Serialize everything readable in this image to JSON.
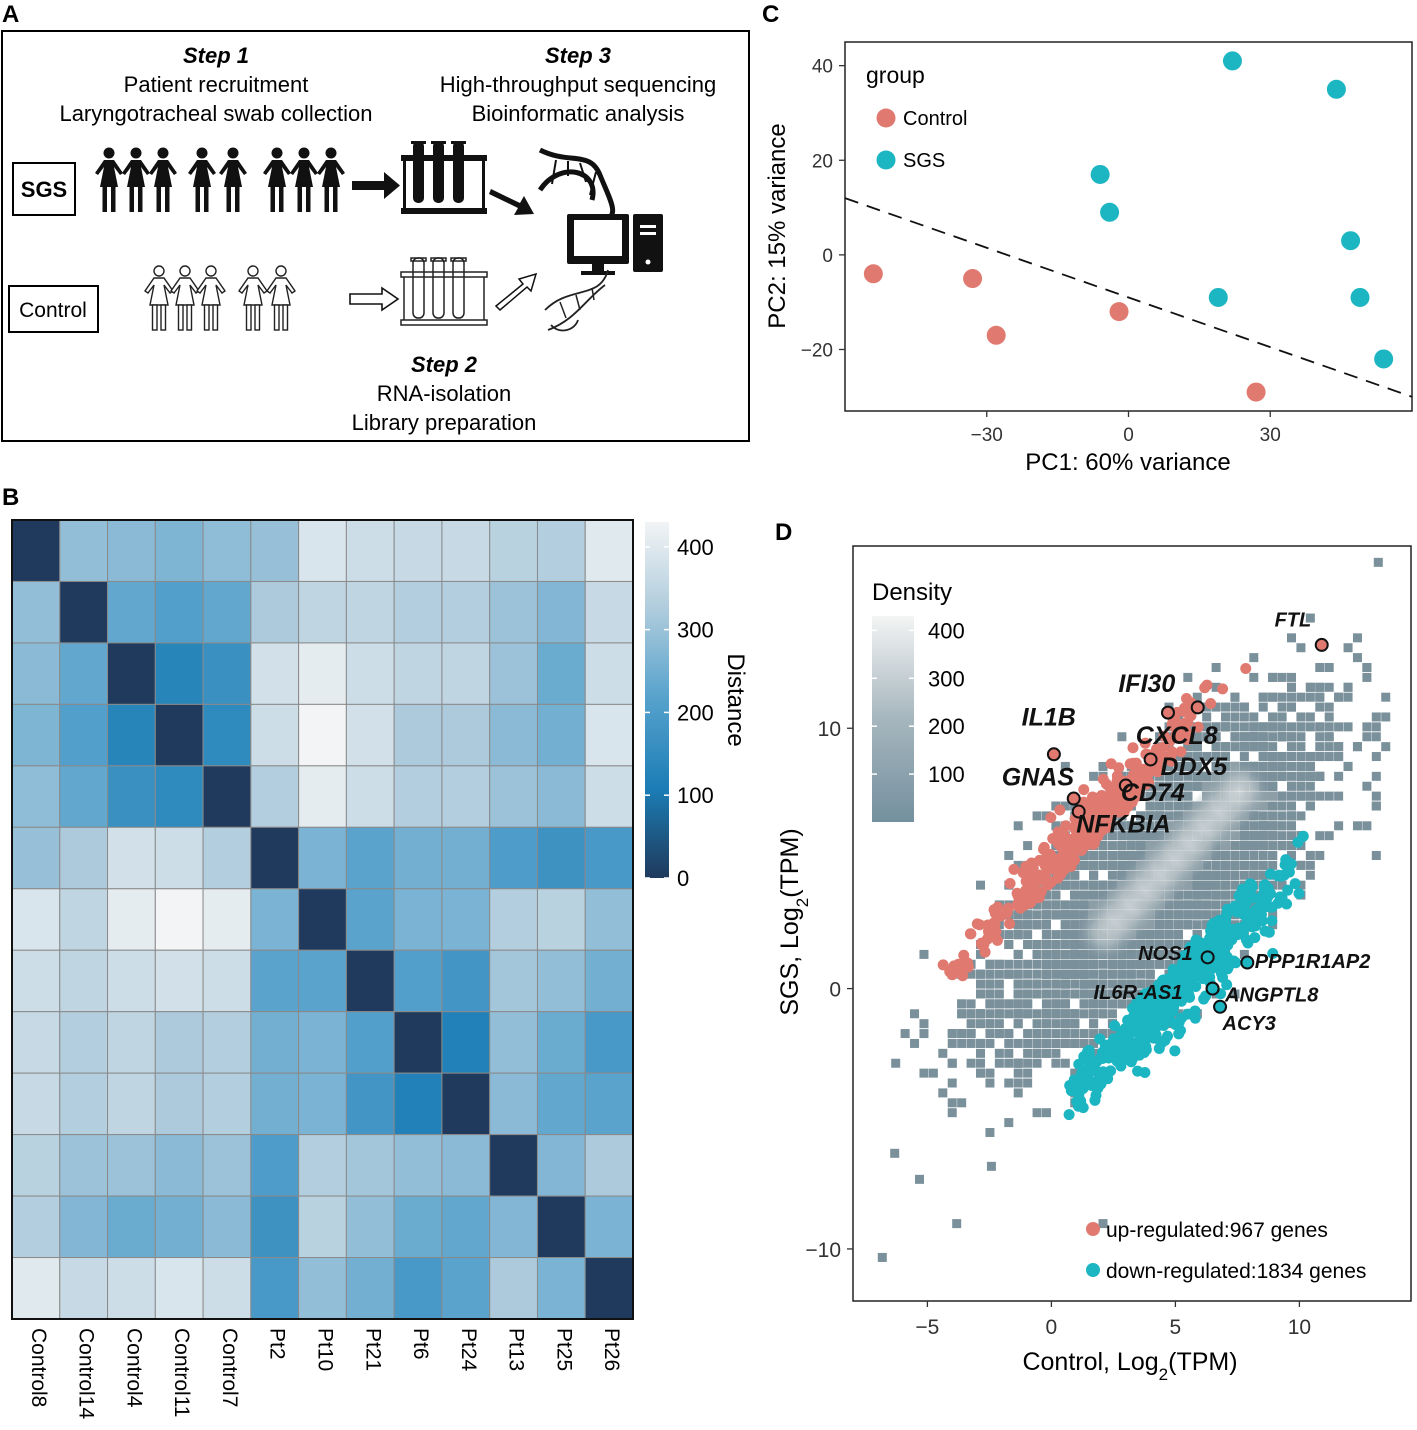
{
  "panel_letters": [
    "A",
    "B",
    "C",
    "D"
  ],
  "panel_a": {
    "step1": {
      "title": "Step 1",
      "line1": "Patient recruitment",
      "line2": "Laryngotracheal swab collection"
    },
    "step2": {
      "title": "Step 2",
      "line1": "RNA-isolation",
      "line2": "Library preparation"
    },
    "step3": {
      "title": "Step 3",
      "line1": "High-throughput sequencing",
      "line2": "Bioinformatic analysis"
    },
    "group_sgs": "SGS",
    "group_control": "Control",
    "sgs_people_count": 8,
    "control_people_count": 5
  },
  "chart_data": [
    {
      "panel": "B",
      "type": "heatmap",
      "title": "",
      "labels": [
        "Control8",
        "Control14",
        "Control4",
        "Control11",
        "Control7",
        "Pt2",
        "Pt10",
        "Pt21",
        "Pt6",
        "Pt24",
        "Pt13",
        "Pt25",
        "Pt26"
      ],
      "matrix": [
        [
          0,
          290,
          280,
          265,
          285,
          295,
          390,
          370,
          360,
          360,
          340,
          330,
          400
        ],
        [
          290,
          0,
          230,
          210,
          230,
          320,
          350,
          350,
          330,
          330,
          300,
          270,
          360
        ],
        [
          280,
          230,
          0,
          130,
          165,
          380,
          410,
          370,
          350,
          350,
          300,
          240,
          370
        ],
        [
          265,
          210,
          130,
          0,
          145,
          370,
          430,
          380,
          320,
          320,
          280,
          250,
          390
        ],
        [
          285,
          230,
          165,
          145,
          0,
          330,
          410,
          370,
          330,
          330,
          300,
          280,
          370
        ],
        [
          295,
          320,
          380,
          370,
          330,
          0,
          260,
          220,
          250,
          250,
          200,
          170,
          190
        ],
        [
          390,
          350,
          410,
          430,
          410,
          260,
          0,
          220,
          260,
          260,
          330,
          340,
          290
        ],
        [
          370,
          350,
          370,
          380,
          370,
          220,
          220,
          0,
          210,
          180,
          310,
          290,
          250
        ],
        [
          360,
          330,
          350,
          320,
          330,
          250,
          260,
          210,
          0,
          120,
          290,
          240,
          190
        ],
        [
          360,
          330,
          350,
          320,
          330,
          250,
          260,
          180,
          120,
          0,
          280,
          230,
          220
        ],
        [
          340,
          300,
          300,
          280,
          300,
          200,
          330,
          310,
          290,
          280,
          0,
          270,
          320
        ],
        [
          330,
          270,
          240,
          250,
          280,
          170,
          340,
          290,
          240,
          230,
          270,
          0,
          260
        ],
        [
          400,
          360,
          370,
          390,
          370,
          190,
          290,
          250,
          190,
          220,
          320,
          260,
          0
        ]
      ],
      "legend_title": "Distance",
      "legend_ticks": [
        0,
        100,
        200,
        300,
        400
      ],
      "legend_range": [
        0,
        430
      ]
    },
    {
      "panel": "C",
      "type": "scatter",
      "title": "",
      "xlabel": "PC1: 60% variance",
      "ylabel": "PC2: 15% variance",
      "xlim": [
        -60,
        60
      ],
      "ylim": [
        -33,
        45
      ],
      "xticks": [
        -30,
        0,
        30
      ],
      "xtick_labels": [
        "−30",
        "0",
        "30"
      ],
      "yticks": [
        -20,
        0,
        20,
        40
      ],
      "ytick_labels": [
        "−20",
        "0",
        "20",
        "40"
      ],
      "legend_title": "group",
      "series": [
        {
          "name": "Control",
          "color": "#E07A70",
          "points": [
            [
              -54,
              -4
            ],
            [
              -33,
              -5
            ],
            [
              -28,
              -17
            ],
            [
              -2,
              -12
            ],
            [
              27,
              -29
            ]
          ]
        },
        {
          "name": "SGS",
          "color": "#1CB5C2",
          "points": [
            [
              22,
              41
            ],
            [
              44,
              35
            ],
            [
              -6,
              17
            ],
            [
              -4,
              9
            ],
            [
              47,
              3
            ],
            [
              19,
              -9
            ],
            [
              49,
              -9
            ],
            [
              54,
              -22
            ]
          ]
        }
      ],
      "dashed_line": [
        [
          -60,
          12
        ],
        [
          60,
          -30
        ]
      ]
    },
    {
      "panel": "D",
      "type": "scatter",
      "title": "",
      "xlabel": "Control, Log",
      "xlabel_sub": "2",
      "xlabel_tail": "(TPM)",
      "ylabel": "SGS, Log",
      "ylabel_sub": "2",
      "ylabel_tail": "(TPM)",
      "xlim": [
        -8,
        14.5
      ],
      "ylim": [
        -12,
        17
      ],
      "xticks": [
        -5,
        0,
        5,
        10
      ],
      "xtick_labels": [
        "−5",
        "0",
        "5",
        "10"
      ],
      "yticks": [
        -10,
        0,
        10
      ],
      "ytick_labels": [
        "−10",
        "0",
        "10"
      ],
      "density_legend_title": "Density",
      "density_ticks": [
        100,
        200,
        300,
        400
      ],
      "legend": [
        {
          "label": "up-regulated:967 genes",
          "color": "#E07A70"
        },
        {
          "label": "down-regulated:1834 genes",
          "color": "#1CB5C2"
        }
      ],
      "up_color": "#E07A70",
      "down_color": "#1CB5C2",
      "highlighted_genes": [
        {
          "name": "FTL",
          "x": 10.9,
          "y": 13.2,
          "group": "up"
        },
        {
          "name": "IFI30",
          "x": 4.7,
          "y": 10.6,
          "group": "up"
        },
        {
          "name": "IFI30",
          "x": 5.9,
          "y": 10.8,
          "group": "up"
        },
        {
          "name": "IL1B",
          "x": 0.1,
          "y": 9.0,
          "group": "up"
        },
        {
          "name": "CXCL8",
          "x": 4.0,
          "y": 8.8,
          "group": "up"
        },
        {
          "name": "DDX5",
          "x": 3.0,
          "y": 7.8,
          "group": "up"
        },
        {
          "name": "GNAS",
          "x": 0.9,
          "y": 7.3,
          "group": "up"
        },
        {
          "name": "CD74",
          "x": 1.1,
          "y": 6.8,
          "group": "up"
        },
        {
          "name": "NOS1",
          "x": 6.3,
          "y": 1.2,
          "group": "down"
        },
        {
          "name": "PPP1R1AP2",
          "x": 7.9,
          "y": 1.0,
          "group": "down"
        },
        {
          "name": "IL6R-AS1",
          "x": 6.5,
          "y": 0.0,
          "group": "down"
        },
        {
          "name": "ANGPTL8",
          "x": 6.5,
          "y": 0.0,
          "group": "down"
        },
        {
          "name": "ACY3",
          "x": 6.8,
          "y": -0.7,
          "group": "down"
        }
      ],
      "gene_labels": [
        {
          "text": "FTL",
          "x": 9.0,
          "y": 13.9,
          "size": "small"
        },
        {
          "text": "IFI30",
          "x": 2.7,
          "y": 11.4,
          "size": "big"
        },
        {
          "text": "IL1B",
          "x": -1.2,
          "y": 10.1,
          "size": "big"
        },
        {
          "text": "CXCL8",
          "x": 3.4,
          "y": 9.4,
          "size": "big"
        },
        {
          "text": "DDX5",
          "x": 4.4,
          "y": 8.2,
          "size": "big"
        },
        {
          "text": "GNAS",
          "x": -2.0,
          "y": 7.8,
          "size": "big"
        },
        {
          "text": "CD74",
          "x": 2.8,
          "y": 7.2,
          "size": "big"
        },
        {
          "text": "NFKBIA",
          "x": 1.0,
          "y": 6.0,
          "size": "big"
        },
        {
          "text": "NOS1",
          "x": 3.5,
          "y": 1.1,
          "size": "small"
        },
        {
          "text": "PPP1R1AP2",
          "x": 8.2,
          "y": 0.8,
          "size": "small"
        },
        {
          "text": "IL6R-AS1",
          "x": 1.7,
          "y": -0.4,
          "size": "small"
        },
        {
          "text": "ANGPTL8",
          "x": 7.0,
          "y": -0.5,
          "size": "small"
        },
        {
          "text": "ACY3",
          "x": 6.9,
          "y": -1.6,
          "size": "small"
        }
      ]
    }
  ]
}
